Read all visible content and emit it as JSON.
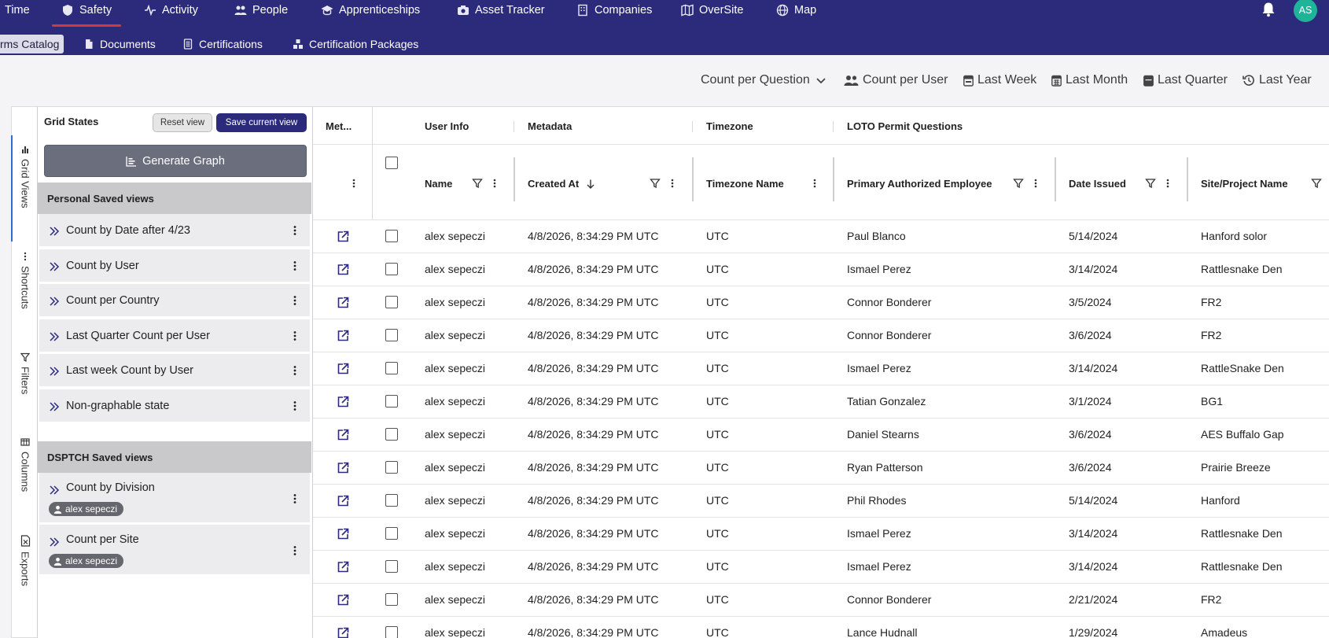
{
  "nav": {
    "items": [
      {
        "label": "Time",
        "icon": "clock-icon"
      },
      {
        "label": "Safety",
        "icon": "shield-icon",
        "active": true
      },
      {
        "label": "Activity",
        "icon": "activity-icon"
      },
      {
        "label": "People",
        "icon": "people-icon"
      },
      {
        "label": "Apprenticeships",
        "icon": "graduation-cap-icon"
      },
      {
        "label": "Asset Tracker",
        "icon": "camera-icon"
      },
      {
        "label": "Companies",
        "icon": "building-icon"
      },
      {
        "label": "OverSite",
        "icon": "map-book-icon"
      },
      {
        "label": "Map",
        "icon": "globe-icon"
      }
    ],
    "avatar_initials": "AS"
  },
  "subnav": {
    "items": [
      {
        "label": "rms Catalog",
        "active": true
      },
      {
        "label": "Documents",
        "icon": "document-icon"
      },
      {
        "label": "Certifications",
        "icon": "list-doc-icon"
      },
      {
        "label": "Certification Packages",
        "icon": "packages-icon"
      }
    ]
  },
  "time_filters": {
    "count_mode": "Count per Question",
    "count_per_user": "Count per User",
    "last_week": "Last Week",
    "last_month": "Last Month",
    "last_quarter": "Last Quarter",
    "last_year": "Last Year"
  },
  "side_tabs": [
    "Grid Views",
    "Shortcuts",
    "Filters",
    "Columns",
    "Exports"
  ],
  "panel": {
    "title": "Grid States",
    "reset_label": "Reset view",
    "save_label": "Save current view",
    "generate_label": "Generate Graph",
    "personal_header": "Personal Saved views",
    "personal_views": [
      "Count by Date after 4/23",
      "Count by User",
      "Count per Country",
      "Last Quarter Count per User",
      "Last week Count by User",
      "Non-graphable state"
    ],
    "shared_header": "DSPTCH Saved views",
    "shared_views": [
      {
        "label": "Count by Division",
        "owner": "alex sepeczi"
      },
      {
        "label": "Count per Site",
        "owner": "alex sepeczi"
      }
    ]
  },
  "grid": {
    "groups": {
      "meta": "Met...",
      "user_info": "User Info",
      "metadata": "Metadata",
      "timezone": "Timezone",
      "loto": "LOTO Permit Questions"
    },
    "columns": {
      "name": "Name",
      "created_at": "Created At",
      "timezone_name": "Timezone Name",
      "primary_employee": "Primary Authorized Employee",
      "date_issued": "Date Issued",
      "site": "Site/Project Name"
    },
    "rows": [
      [
        "alex sepeczi",
        "4/8/2026, 8:34:29 PM UTC",
        "UTC",
        "Paul Blanco",
        "5/14/2024",
        "Hanford solor"
      ],
      [
        "alex sepeczi",
        "4/8/2026, 8:34:29 PM UTC",
        "UTC",
        "Ismael Perez",
        "3/14/2024",
        "Rattlesnake Den"
      ],
      [
        "alex sepeczi",
        "4/8/2026, 8:34:29 PM UTC",
        "UTC",
        "Connor Bonderer",
        "3/5/2024",
        "FR2"
      ],
      [
        "alex sepeczi",
        "4/8/2026, 8:34:29 PM UTC",
        "UTC",
        "Connor Bonderer",
        "3/6/2024",
        "FR2"
      ],
      [
        "alex sepeczi",
        "4/8/2026, 8:34:29 PM UTC",
        "UTC",
        "Ismael Perez",
        "3/14/2024",
        "RattleSnake Den"
      ],
      [
        "alex sepeczi",
        "4/8/2026, 8:34:29 PM UTC",
        "UTC",
        "Tatian Gonzalez",
        "3/1/2024",
        "BG1"
      ],
      [
        "alex sepeczi",
        "4/8/2026, 8:34:29 PM UTC",
        "UTC",
        "Daniel Stearns",
        "3/6/2024",
        "AES Buffalo Gap"
      ],
      [
        "alex sepeczi",
        "4/8/2026, 8:34:29 PM UTC",
        "UTC",
        "Ryan Patterson",
        "3/6/2024",
        "Prairie Breeze"
      ],
      [
        "alex sepeczi",
        "4/8/2026, 8:34:29 PM UTC",
        "UTC",
        "Phil Rhodes",
        "5/14/2024",
        "Hanford"
      ],
      [
        "alex sepeczi",
        "4/8/2026, 8:34:29 PM UTC",
        "UTC",
        "Ismael Perez",
        "3/14/2024",
        "Rattlesnake Den"
      ],
      [
        "alex sepeczi",
        "4/8/2026, 8:34:29 PM UTC",
        "UTC",
        "Ismael Perez",
        "3/14/2024",
        "Rattlesnake Den"
      ],
      [
        "alex sepeczi",
        "4/8/2026, 8:34:29 PM UTC",
        "UTC",
        "Connor Bonderer",
        "2/21/2024",
        "FR2"
      ],
      [
        "alex sepeczi",
        "4/8/2026, 8:34:29 PM UTC",
        "UTC",
        "Lance Hudnall",
        "1/29/2024",
        "Amadeus"
      ]
    ]
  }
}
